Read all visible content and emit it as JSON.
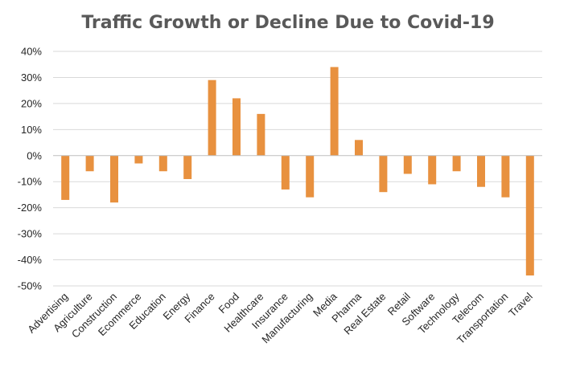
{
  "chart_data": {
    "type": "bar",
    "title": "Traffic Growth or Decline Due to Covid-19",
    "xlabel": "",
    "ylabel": "",
    "ylim": [
      -50,
      40
    ],
    "y_ticks": [
      "40%",
      "30%",
      "20%",
      "10%",
      "0%",
      "-10%",
      "-20%",
      "-30%",
      "-40%",
      "-50%"
    ],
    "y_tick_values": [
      40,
      30,
      20,
      10,
      0,
      -10,
      -20,
      -30,
      -40,
      -50
    ],
    "grid": true,
    "legend": "none",
    "bar_color": "#E8913F",
    "categories": [
      "Advertising",
      "Agriculture",
      "Construction",
      "Ecommerce",
      "Education",
      "Energy",
      "Finance",
      "Food",
      "Healthcare",
      "Insurance",
      "Manufacturing",
      "Media",
      "Pharma",
      "Real Estate",
      "Retail",
      "Software",
      "Technology",
      "Telecom",
      "Transportation",
      "Travel"
    ],
    "values": [
      -17,
      -6,
      -18,
      -3,
      -6,
      -9,
      29,
      22,
      16,
      -13,
      -16,
      34,
      6,
      -14,
      -7,
      -11,
      -6,
      -12,
      -16,
      -46
    ]
  }
}
